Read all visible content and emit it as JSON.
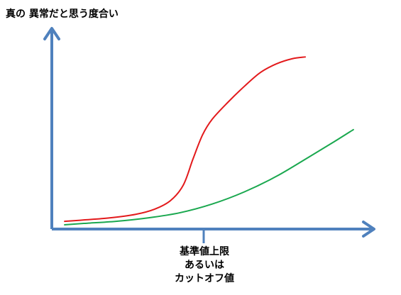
{
  "chart_data": {
    "type": "line",
    "title": "",
    "ylabel": "真の 異常だと思う度合い",
    "xlabel": "",
    "x_marker": {
      "lines": [
        "基準値上限",
        "あるいは",
        "カットオフ値"
      ]
    },
    "grid": false,
    "legend": "none",
    "series": [
      {
        "color": "#e31a1c",
        "points": [
          [
            0.04,
            0.02
          ],
          [
            0.1,
            0.028
          ],
          [
            0.18,
            0.04
          ],
          [
            0.26,
            0.06
          ],
          [
            0.32,
            0.09
          ],
          [
            0.37,
            0.14
          ],
          [
            0.41,
            0.23
          ],
          [
            0.44,
            0.38
          ],
          [
            0.47,
            0.52
          ],
          [
            0.5,
            0.61
          ],
          [
            0.55,
            0.71
          ],
          [
            0.6,
            0.8
          ],
          [
            0.65,
            0.88
          ],
          [
            0.7,
            0.93
          ],
          [
            0.75,
            0.96
          ],
          [
            0.79,
            0.97
          ]
        ]
      },
      {
        "color": "#1aa84f",
        "points": [
          [
            0.04,
            0.0
          ],
          [
            0.1,
            0.008
          ],
          [
            0.2,
            0.02
          ],
          [
            0.3,
            0.04
          ],
          [
            0.4,
            0.07
          ],
          [
            0.5,
            0.12
          ],
          [
            0.6,
            0.19
          ],
          [
            0.7,
            0.28
          ],
          [
            0.8,
            0.39
          ],
          [
            0.88,
            0.48
          ],
          [
            0.94,
            0.55
          ]
        ]
      }
    ]
  }
}
